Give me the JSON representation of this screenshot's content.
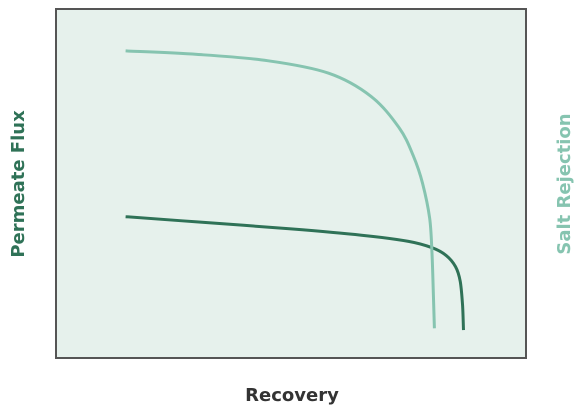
{
  "chart_data": {
    "type": "line",
    "title": "",
    "xlabel": "Recovery",
    "ylabel_left": "Permeate Flux",
    "ylabel_right": "Salt Rejection",
    "xlim": [
      0,
      1
    ],
    "ylim": [
      0,
      1
    ],
    "grid": false,
    "colors": {
      "plot_bg": "#e6f1ec",
      "frame": "#555555",
      "permeate_flux": "#2f7257",
      "salt_rejection": "#86c4b0"
    },
    "series": [
      {
        "name": "Permeate Flux",
        "axis": "left",
        "x": [
          0.148,
          0.3,
          0.5,
          0.65,
          0.75,
          0.8,
          0.83,
          0.85,
          0.86,
          0.865,
          0.867
        ],
        "y": [
          0.405,
          0.39,
          0.37,
          0.352,
          0.334,
          0.316,
          0.294,
          0.262,
          0.22,
          0.15,
          0.08
        ]
      },
      {
        "name": "Salt Rejection",
        "axis": "right",
        "x": [
          0.148,
          0.3,
          0.45,
          0.58,
          0.67,
          0.73,
          0.76,
          0.78,
          0.795,
          0.8,
          0.803,
          0.805
        ],
        "y": [
          0.88,
          0.87,
          0.852,
          0.816,
          0.75,
          0.66,
          0.58,
          0.5,
          0.4,
          0.3,
          0.18,
          0.085
        ]
      }
    ]
  }
}
